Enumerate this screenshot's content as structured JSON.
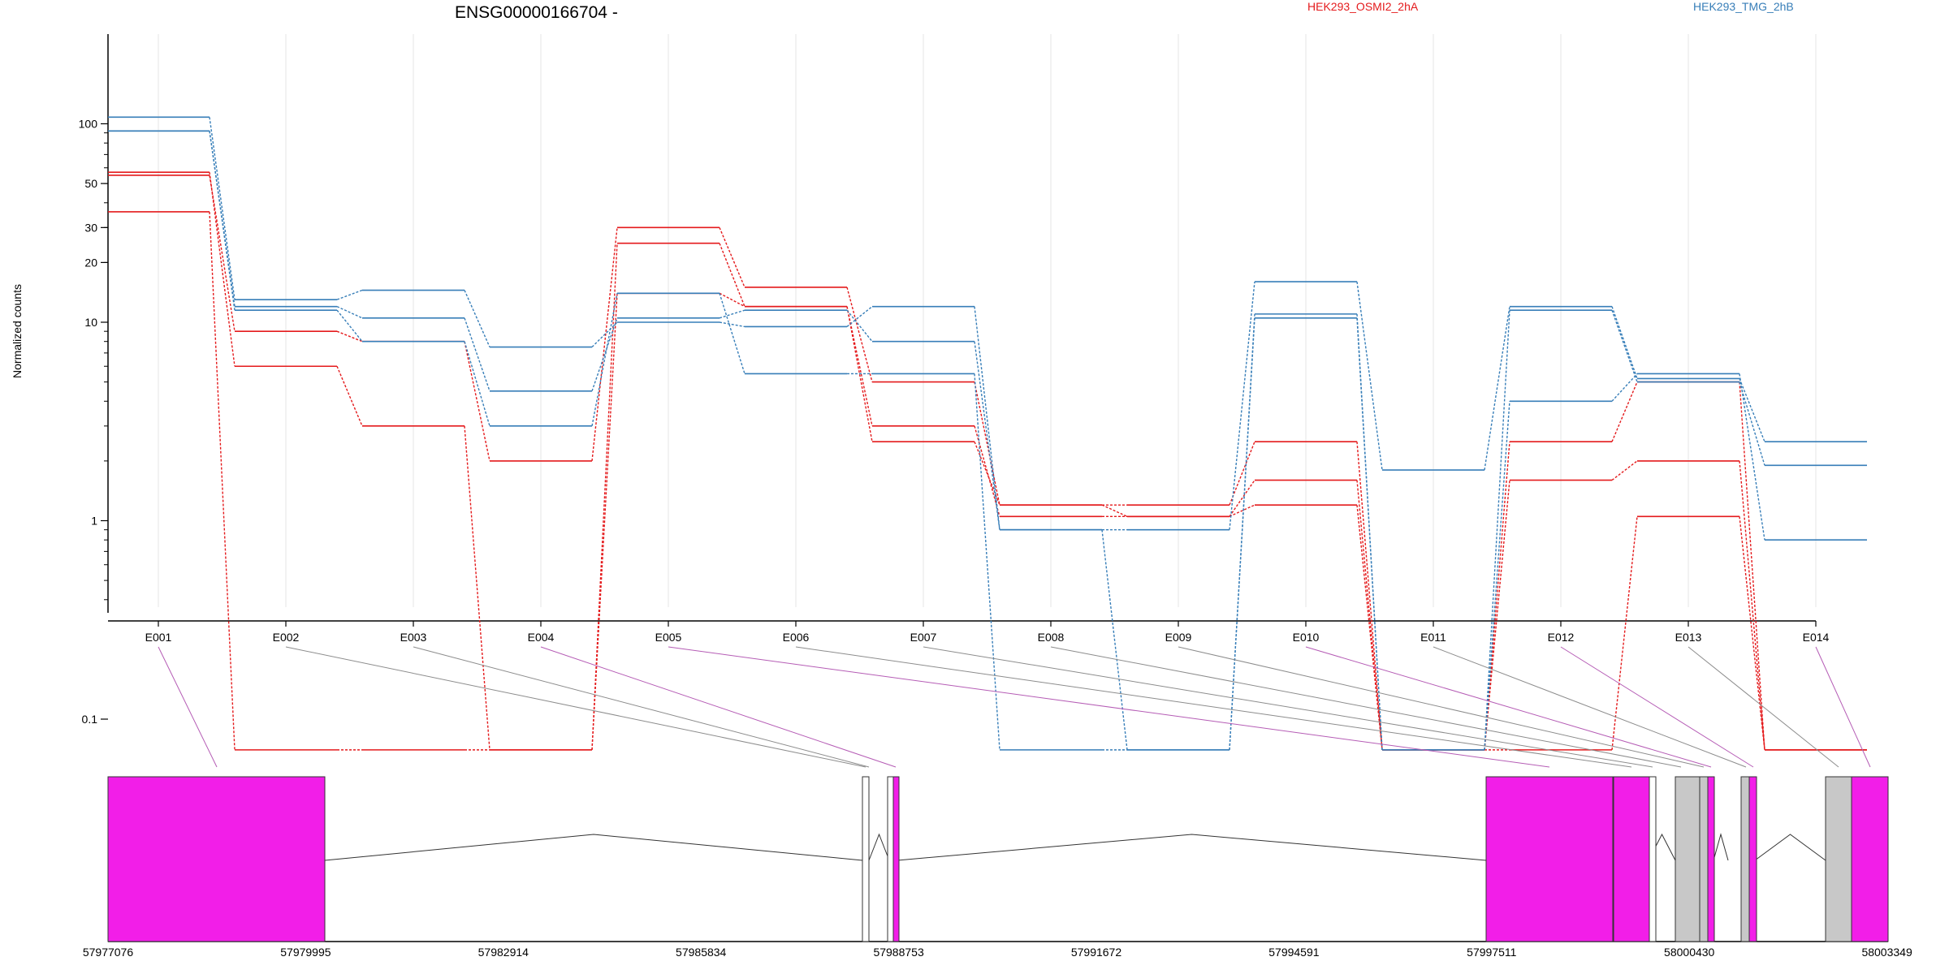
{
  "chart_data": {
    "type": "line",
    "title": "ENSG00000166704 -",
    "ylabel": "Normalized counts",
    "y_scale": "log",
    "yticks": [
      {
        "value": 100,
        "label": "100"
      },
      {
        "value": 50,
        "label": "50"
      },
      {
        "value": 30,
        "label": "30"
      },
      {
        "value": 20,
        "label": "20"
      },
      {
        "value": 10,
        "label": "10"
      },
      {
        "value": 1,
        "label": "1"
      },
      {
        "value": 0.1,
        "label": "0.1"
      }
    ],
    "categories": [
      "E001",
      "E002",
      "E003",
      "E004",
      "E005",
      "E006",
      "E007",
      "E008",
      "E009",
      "E010",
      "E011",
      "E012",
      "E013",
      "E014"
    ],
    "legend": [
      {
        "name": "HEK293_OSMI2_2hA",
        "color": "#e41a1c"
      },
      {
        "name": "HEK293_TMG_2hB",
        "color": "#377eb8"
      }
    ],
    "series": [
      {
        "group": "HEK293_OSMI2_2hA",
        "color": "#e41a1c",
        "values": [
          55,
          9,
          8,
          2,
          30,
          15,
          5,
          1.2,
          1.2,
          2.5,
          0.07,
          2.5,
          5,
          0.07
        ]
      },
      {
        "group": "HEK293_OSMI2_2hA",
        "color": "#e41a1c",
        "values": [
          57,
          6,
          3,
          0.07,
          25,
          12,
          3,
          1.05,
          1.05,
          1.2,
          0.07,
          1.6,
          2,
          0.07
        ]
      },
      {
        "group": "HEK293_OSMI2_2hA",
        "color": "#e41a1c",
        "values": [
          36,
          0.07,
          0.07,
          0.07,
          14,
          12,
          2.5,
          1.2,
          1.05,
          1.6,
          0.07,
          0.07,
          1.05,
          0.07
        ]
      },
      {
        "group": "HEK293_TMG_2hB",
        "color": "#377eb8",
        "values": [
          108,
          13,
          14.5,
          7.5,
          10,
          9.5,
          12,
          0.9,
          0.9,
          16,
          1.8,
          12,
          5.2,
          2.5
        ]
      },
      {
        "group": "HEK293_TMG_2hB",
        "color": "#377eb8",
        "values": [
          92,
          12,
          10.5,
          4.5,
          10.5,
          11.5,
          8,
          0.9,
          0.07,
          11,
          0.07,
          11.5,
          5,
          1.9
        ]
      },
      {
        "group": "HEK293_TMG_2hB",
        "color": "#377eb8",
        "values": [
          92,
          11.5,
          8,
          3,
          14,
          5.5,
          5.5,
          0.07,
          0.07,
          10.5,
          0.07,
          4,
          5.5,
          0.8
        ]
      }
    ],
    "gene_model": {
      "coordinate_labels": [
        "57977076",
        "57979995",
        "57982914",
        "57985834",
        "57988753",
        "57991672",
        "57994591",
        "57997511",
        "58000430",
        "58003349"
      ],
      "exon_significant": [
        true,
        false,
        false,
        true,
        true,
        false,
        false,
        false,
        false,
        true,
        false,
        true,
        false,
        true
      ]
    }
  },
  "colors": {
    "significant": "#f21ee8",
    "non_significant": "#c8c8c8",
    "mapping_significant": "#b55cb5",
    "mapping_normal": "#8c8c8c"
  }
}
